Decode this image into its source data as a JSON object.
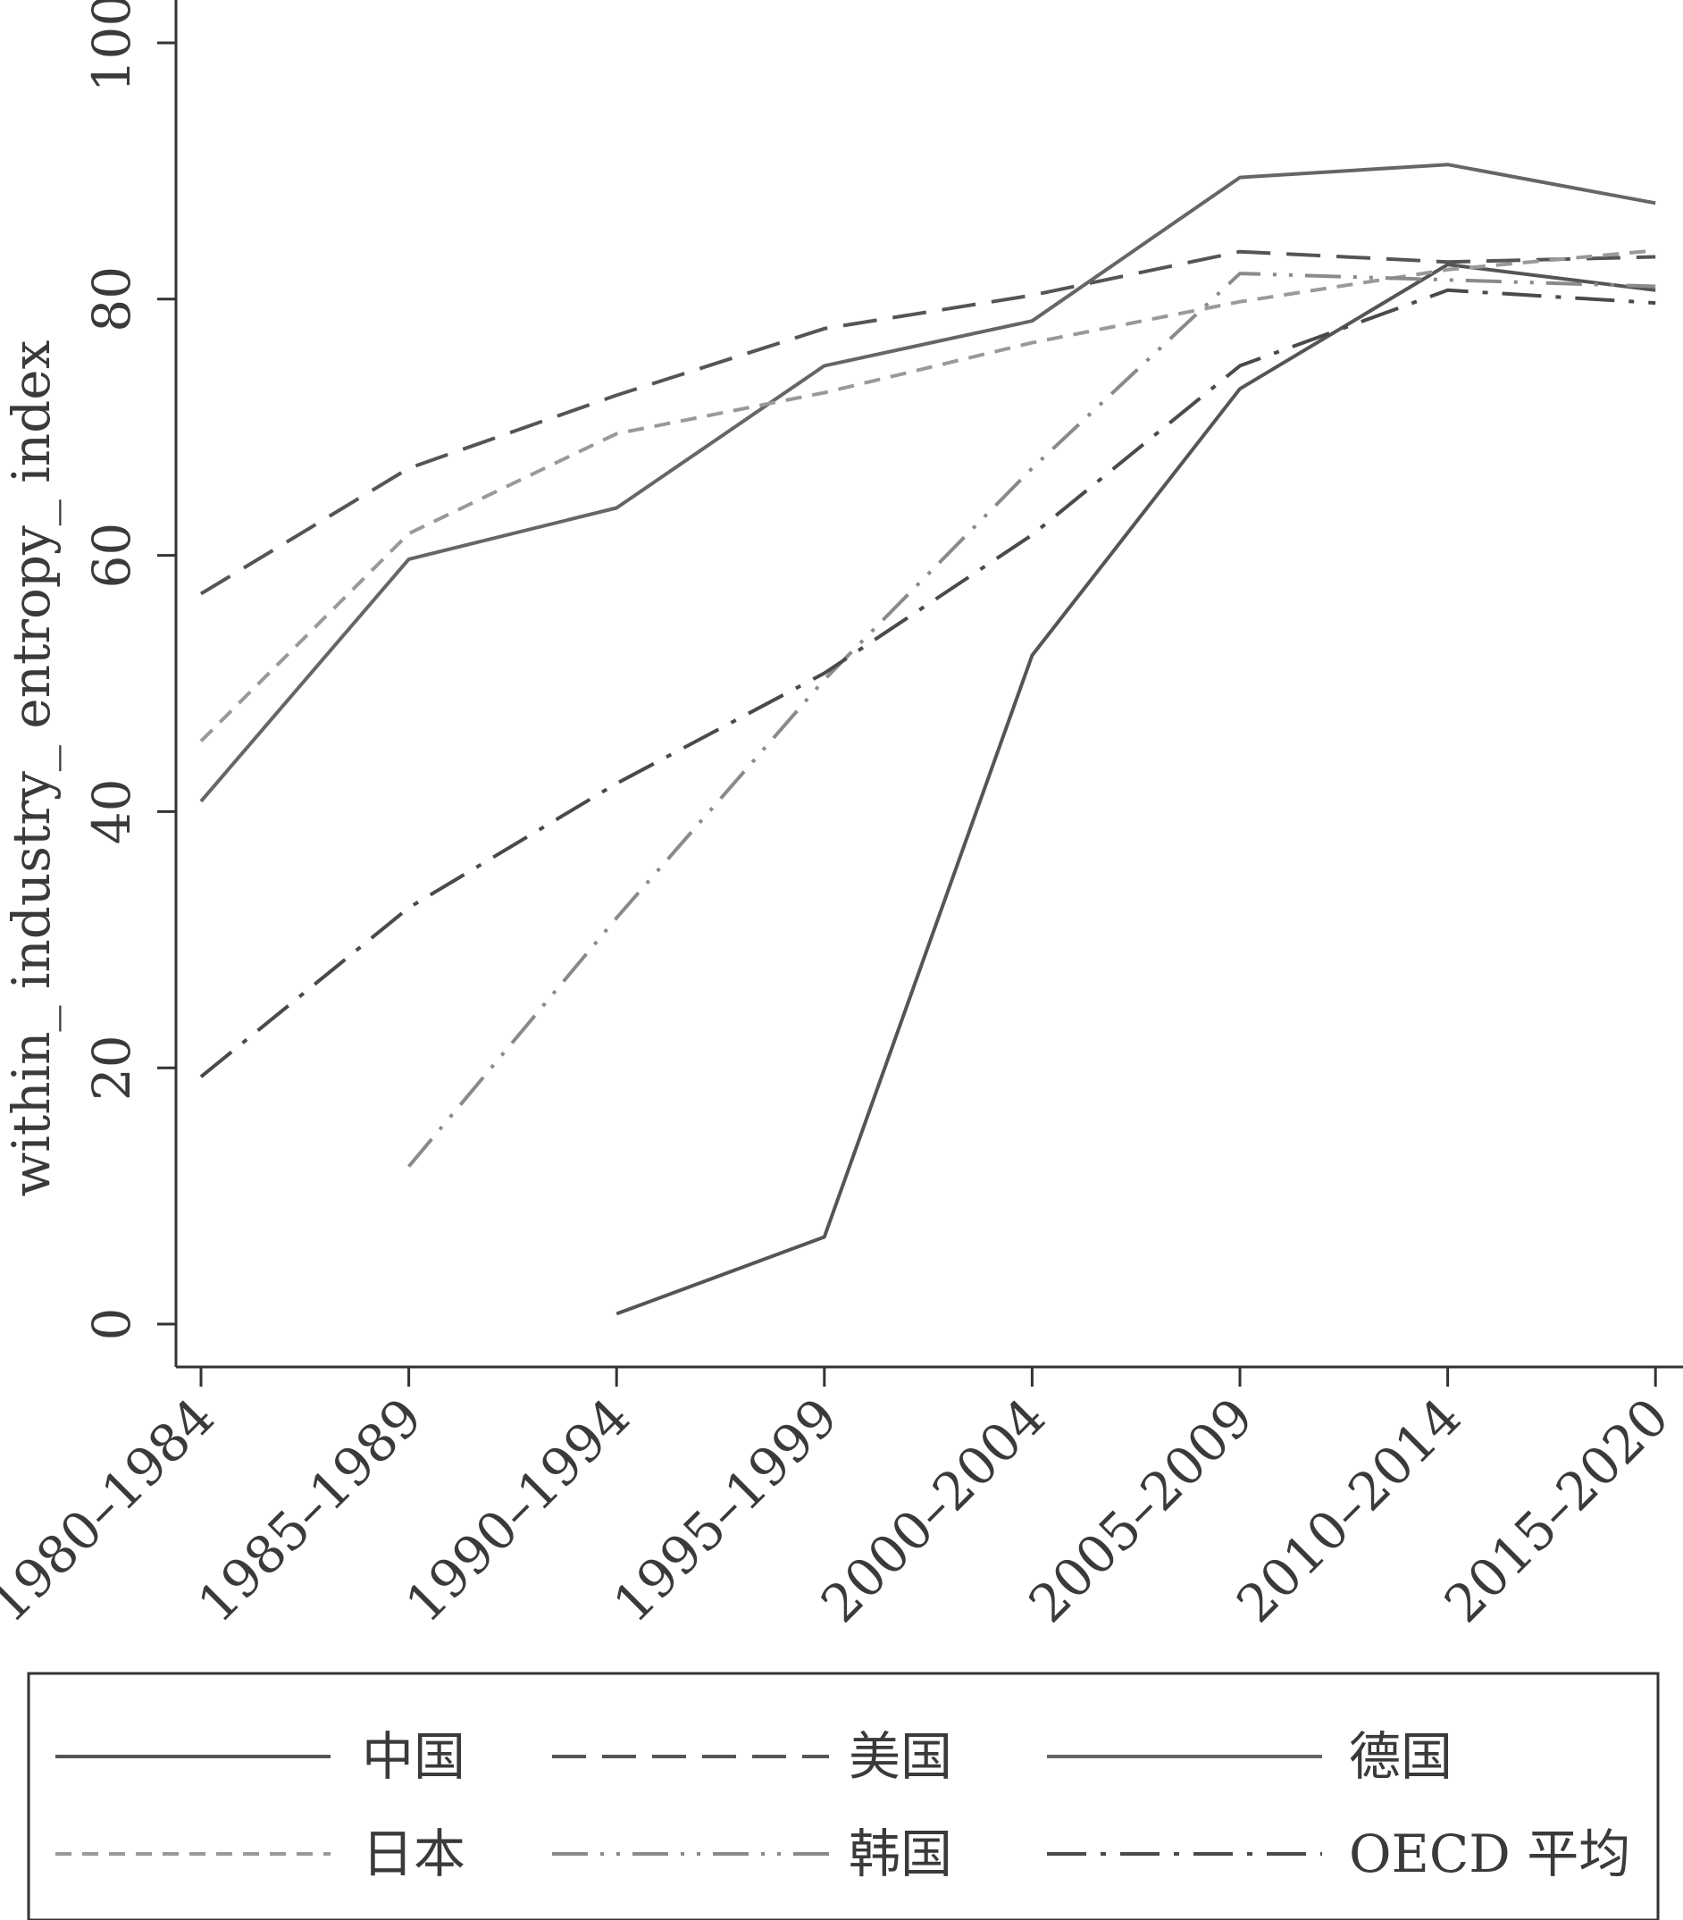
{
  "chart_data": {
    "type": "line",
    "title": "",
    "xlabel": "",
    "ylabel": "within_ industry_ entropy_ index",
    "ylim": [
      0,
      100
    ],
    "y_ticks": [
      "0",
      "20",
      "40",
      "60",
      "80",
      "100"
    ],
    "y_tick_values": [
      0,
      20,
      40,
      60,
      80,
      100
    ],
    "categories": [
      "1980–1984",
      "1985–1989",
      "1990–1994",
      "1995–1999",
      "2000–2004",
      "2005–2009",
      "2010–2014",
      "2015–2020"
    ],
    "grid": false,
    "legend_position": "bottom",
    "series": [
      {
        "name": "中国",
        "style": "solid",
        "color": "#555555",
        "values": [
          null,
          null,
          0.8,
          6.8,
          52.2,
          73.0,
          82.7,
          80.7
        ]
      },
      {
        "name": "美国",
        "style": "dash",
        "color": "#555555",
        "values": [
          57.0,
          66.8,
          72.5,
          77.7,
          80.3,
          83.7,
          82.9,
          83.3
        ]
      },
      {
        "name": "德国",
        "style": "solid",
        "color": "#666666",
        "values": [
          40.8,
          59.7,
          63.7,
          74.8,
          78.3,
          89.5,
          90.5,
          87.5
        ]
      },
      {
        "name": "日本",
        "style": "short-dash",
        "color": "#999999",
        "values": [
          45.5,
          61.7,
          69.5,
          72.7,
          76.6,
          79.8,
          82.3,
          83.8
        ]
      },
      {
        "name": "韩国",
        "style": "dash-dot-dot",
        "color": "#8a8a8a",
        "values": [
          null,
          12.3,
          31.7,
          50.3,
          66.8,
          82.0,
          81.5,
          81.0
        ]
      },
      {
        "name": "OECD 平均",
        "style": "dash-dot",
        "color": "#4a4a4a",
        "values": [
          19.3,
          32.5,
          42.2,
          50.8,
          61.6,
          74.8,
          80.7,
          79.7
        ]
      }
    ]
  }
}
